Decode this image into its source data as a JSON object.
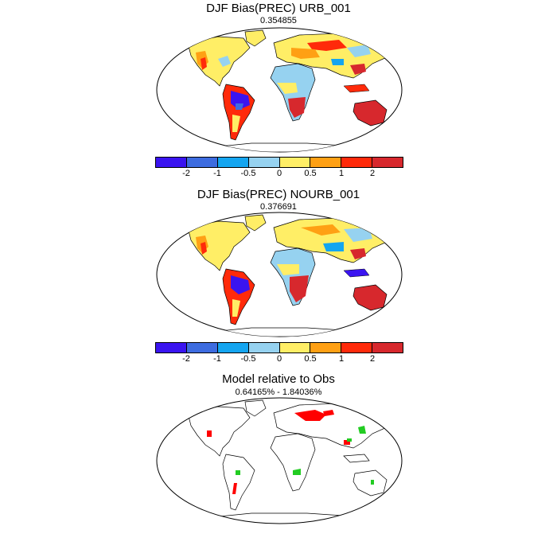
{
  "panels": [
    {
      "title": "DJF Bias(PREC) URB_001",
      "subtitle": "0.354855"
    },
    {
      "title": "DJF Bias(PREC) NOURB_001",
      "subtitle": "0.376691"
    },
    {
      "title": "Model relative to Obs",
      "subtitle": "0.64165% - 1.84036%"
    }
  ],
  "colorbar": {
    "colors": [
      "#3a14f0",
      "#3d6ce0",
      "#14a5f0",
      "#96d2f0",
      "#ffee66",
      "#ffa014",
      "#ff2a0a",
      "#d7282d"
    ],
    "labels": [
      "-2",
      "-1",
      "-0.5",
      "0",
      "0.5",
      "1",
      "2"
    ]
  },
  "map_colors": {
    "ocean": "#ffffff",
    "coastline": "#000000",
    "dry_strong": "#3a14f0",
    "dry": "#14a5f0",
    "dry_light": "#96d2f0",
    "neutral": "#ffee66",
    "wet": "#ffa014",
    "wet_strong": "#ff2a0a",
    "wet_max": "#d7282d",
    "significant_positive": "#ff0000",
    "significant_negative": "#22cc22"
  }
}
